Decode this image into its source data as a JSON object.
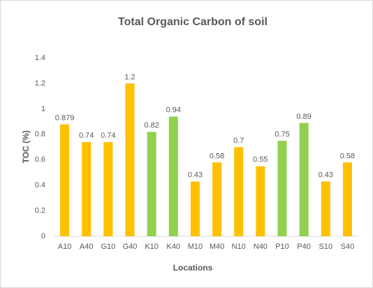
{
  "chart_data": {
    "type": "bar",
    "title": "Total Organic Carbon of soil",
    "x_label": "Locations",
    "y_label": "TOC (%)",
    "categories": [
      "A10",
      "A40",
      "G10",
      "G40",
      "K10",
      "K40",
      "M10",
      "M40",
      "N10",
      "N40",
      "P10",
      "P40",
      "S10",
      "S40"
    ],
    "values": [
      0.879,
      0.74,
      0.74,
      1.2,
      0.82,
      0.94,
      0.43,
      0.58,
      0.7,
      0.55,
      0.75,
      0.89,
      0.43,
      0.58
    ],
    "colors": [
      "#ffc000",
      "#ffc000",
      "#ffc000",
      "#ffc000",
      "#92d050",
      "#92d050",
      "#ffc000",
      "#ffc000",
      "#ffc000",
      "#ffc000",
      "#92d050",
      "#92d050",
      "#ffc000",
      "#ffc000"
    ],
    "ylim": [
      0,
      1.4
    ],
    "yticks": [
      0,
      0.2,
      0.4,
      0.6,
      0.8,
      1,
      1.2,
      1.4
    ],
    "grid": false
  }
}
